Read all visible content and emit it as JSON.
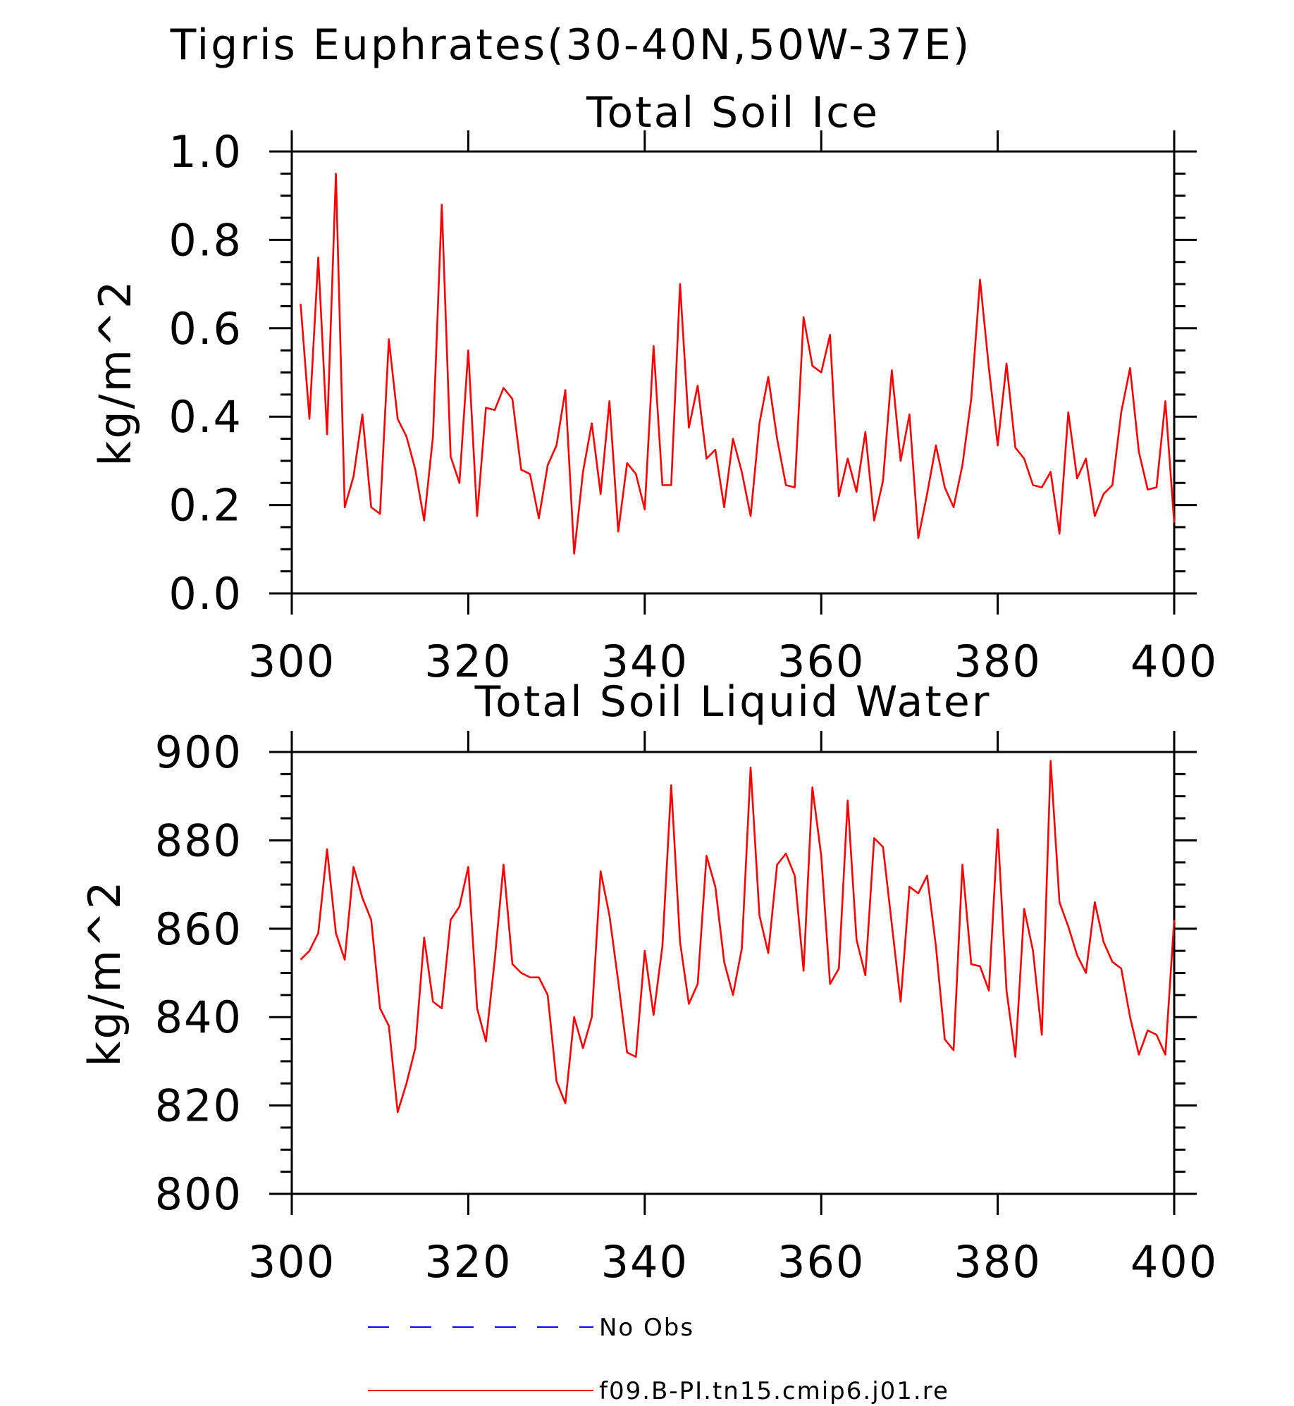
{
  "figure": {
    "title": "Tigris Euphrates(30-40N,50W-37E)"
  },
  "chart_data": [
    {
      "type": "line",
      "title": "Total Soil Ice",
      "xlabel": "",
      "ylabel": "kg/m^2",
      "xlim": [
        300,
        400
      ],
      "ylim": [
        0.0,
        1.0
      ],
      "xticks": [
        "300",
        "320",
        "340",
        "360",
        "380",
        "400"
      ],
      "yticks": [
        "0.0",
        "0.2",
        "0.4",
        "0.6",
        "0.8",
        "1.0"
      ],
      "grid": false,
      "series": [
        {
          "name": "f09.B-PI.tn15.cmip6.j01.re",
          "color": "#ff0000",
          "x_start": 301,
          "values": [
            0.655,
            0.395,
            0.76,
            0.36,
            0.95,
            0.195,
            0.265,
            0.405,
            0.195,
            0.18,
            0.575,
            0.395,
            0.355,
            0.28,
            0.165,
            0.355,
            0.88,
            0.31,
            0.25,
            0.55,
            0.175,
            0.42,
            0.415,
            0.465,
            0.44,
            0.28,
            0.27,
            0.17,
            0.29,
            0.335,
            0.46,
            0.09,
            0.275,
            0.385,
            0.225,
            0.435,
            0.14,
            0.295,
            0.27,
            0.19,
            0.56,
            0.245,
            0.245,
            0.7,
            0.375,
            0.47,
            0.305,
            0.325,
            0.195,
            0.35,
            0.275,
            0.175,
            0.385,
            0.49,
            0.35,
            0.245,
            0.24,
            0.625,
            0.515,
            0.5,
            0.585,
            0.22,
            0.305,
            0.23,
            0.365,
            0.165,
            0.255,
            0.505,
            0.3,
            0.405,
            0.125,
            0.225,
            0.335,
            0.24,
            0.195,
            0.29,
            0.44,
            0.71,
            0.51,
            0.335,
            0.52,
            0.33,
            0.305,
            0.245,
            0.24,
            0.275,
            0.135,
            0.41,
            0.26,
            0.305,
            0.175,
            0.225,
            0.245,
            0.41,
            0.51,
            0.32,
            0.235,
            0.24,
            0.435,
            0.16
          ]
        }
      ]
    },
    {
      "type": "line",
      "title": "Total Soil Liquid Water",
      "xlabel": "",
      "ylabel": "kg/m^2",
      "xlim": [
        300,
        400
      ],
      "ylim": [
        800,
        900
      ],
      "xticks": [
        "300",
        "320",
        "340",
        "360",
        "380",
        "400"
      ],
      "yticks": [
        "800",
        "820",
        "840",
        "860",
        "880",
        "900"
      ],
      "grid": false,
      "series": [
        {
          "name": "f09.B-PI.tn15.cmip6.j01.re",
          "color": "#ff0000",
          "x_start": 301,
          "values": [
            853,
            855,
            859,
            878,
            859,
            853,
            874,
            867,
            862,
            842,
            838,
            818.5,
            825,
            833,
            858,
            843.5,
            842,
            862,
            865,
            874,
            842,
            834.5,
            853,
            874.5,
            852,
            850,
            849,
            849,
            845,
            825.5,
            820.5,
            840,
            833,
            840,
            873,
            863,
            848,
            832,
            831,
            855,
            840.5,
            856,
            892.5,
            857,
            843,
            847.5,
            876.5,
            869.5,
            852.5,
            845,
            855.5,
            896.5,
            863,
            854.5,
            874.5,
            877,
            872,
            850.5,
            892,
            876.5,
            847.5,
            851,
            889,
            857.5,
            849.5,
            880.5,
            878.5,
            861,
            843.5,
            869.5,
            868,
            872,
            856,
            835,
            832.5,
            874.5,
            852,
            851.5,
            846,
            882.5,
            846,
            831,
            864.5,
            855,
            836,
            898,
            866,
            860.5,
            854,
            850,
            866,
            857,
            852.5,
            851,
            840,
            831.5,
            837,
            836,
            831.5,
            862
          ]
        }
      ]
    }
  ],
  "legend": {
    "placement": "bottom",
    "items": [
      {
        "label": "No Obs",
        "color": "#0000ff",
        "style": "dashed"
      },
      {
        "label": "f09.B-PI.tn15.cmip6.j01.re",
        "color": "#ff0000",
        "style": "solid"
      }
    ]
  }
}
